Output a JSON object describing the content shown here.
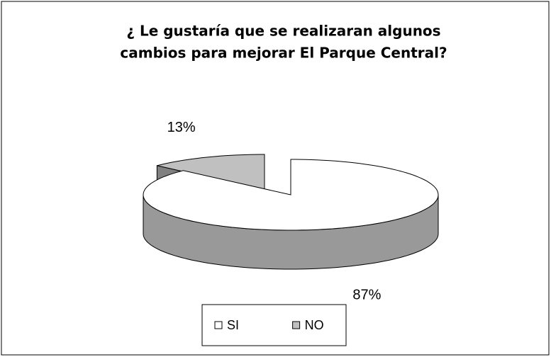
{
  "chart_data": {
    "type": "pie3d",
    "title": [
      "¿ Le gustaría que se realizaran algunos",
      "cambios para mejorar El Parque Central?"
    ],
    "categories": [
      "SI",
      "NO"
    ],
    "values": [
      87,
      13
    ],
    "value_labels": [
      "87%",
      "13%"
    ],
    "colors": [
      "#ffffff",
      "#c0c0c0"
    ],
    "legend": "bottom"
  }
}
